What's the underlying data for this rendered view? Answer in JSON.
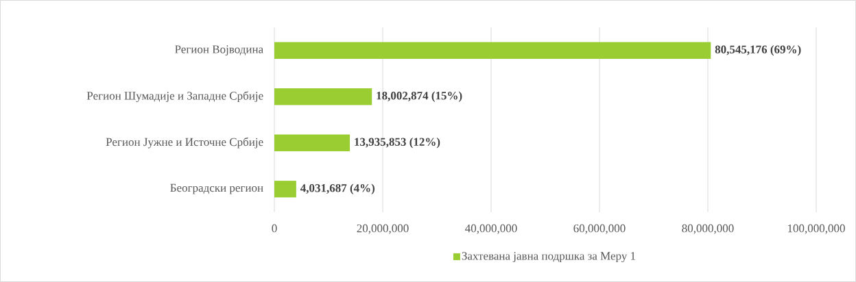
{
  "chart_data": {
    "type": "bar",
    "orientation": "horizontal",
    "categories": [
      "Регион Војводина",
      "Регион Шумадије и Западне Србије",
      "Регион Јужне и Источне Србије",
      "Београдски регион"
    ],
    "series": [
      {
        "name": "Захтевана јавна подршка за Меру 1",
        "color": "#9acd32",
        "values": [
          80545176,
          18002874,
          13935853,
          4031687
        ],
        "value_labels": [
          "80,545,176 (69%)",
          "18,002,874 (15%)",
          "13,935,853 (12%)",
          "4,031,687 (4%)"
        ]
      }
    ],
    "xlim": [
      0,
      100000000
    ],
    "xticks": [
      0,
      {
        "value": 20000000,
        "label": "20,000,000"
      },
      {
        "value": 40000000,
        "label": "40,000,000"
      },
      {
        "value": 60000000,
        "label": "60,000,000"
      },
      {
        "value": 80000000,
        "label": "80,000,000"
      },
      {
        "value": 100000000,
        "label": "100,000,000"
      }
    ],
    "grid": "x",
    "legend": "bottom"
  }
}
